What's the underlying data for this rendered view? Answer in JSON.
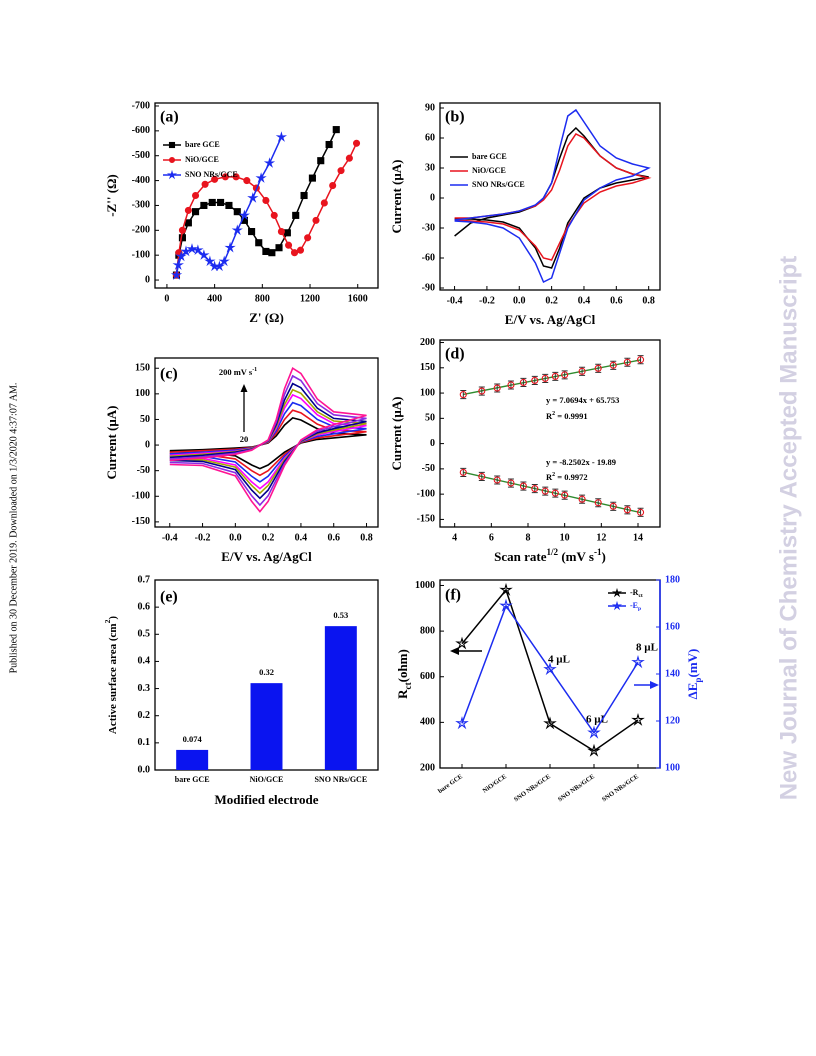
{
  "side_note": "Published on 30 December 2019. Downloaded on 1/3/2020 4:37:07 AM.",
  "watermark": "New Journal of Chemistry Accepted Manuscript",
  "chart_data": [
    {
      "type": "line",
      "panel_label": "(a)",
      "x_label": "Z' (Ω)",
      "y_label": "-Z'' (Ω)",
      "xlim": [
        -100,
        1770
      ],
      "ylim": [
        32,
        -712
      ],
      "xticks": [
        0,
        400,
        800,
        1200,
        1600
      ],
      "yticks": [
        0,
        -100,
        -200,
        -300,
        -400,
        -500,
        -600,
        -700
      ],
      "legend": "upper left",
      "series": [
        {
          "name": "bare GCE",
          "color": "#000000",
          "marker": "square",
          "marker_filled": true,
          "x": [
            80,
            100,
            130,
            180,
            240,
            310,
            380,
            450,
            520,
            590,
            650,
            710,
            770,
            830,
            880,
            940,
            1010,
            1080,
            1150,
            1220,
            1290,
            1360,
            1420
          ],
          "values": [
            -20,
            -100,
            -170,
            -230,
            -275,
            -300,
            -312,
            -312,
            -300,
            -275,
            -240,
            -195,
            -150,
            -115,
            -110,
            -130,
            -190,
            -260,
            -340,
            -410,
            -480,
            -545,
            -605
          ]
        },
        {
          "name": "NiO/GCE",
          "color": "#e8141e",
          "marker": "circle",
          "marker_filled": true,
          "x": [
            80,
            100,
            130,
            180,
            240,
            320,
            400,
            490,
            580,
            670,
            750,
            830,
            900,
            960,
            1020,
            1070,
            1120,
            1180,
            1250,
            1320,
            1390,
            1460,
            1530,
            1590
          ],
          "values": [
            -20,
            -110,
            -200,
            -280,
            -340,
            -385,
            -405,
            -415,
            -415,
            -400,
            -370,
            -320,
            -260,
            -195,
            -140,
            -110,
            -120,
            -170,
            -240,
            -310,
            -380,
            -440,
            -490,
            -550
          ]
        },
        {
          "name": "SNO NRs/GCE",
          "color": "#1c2cf0",
          "marker": "star",
          "marker_filled": true,
          "x": [
            80,
            95,
            120,
            160,
            210,
            260,
            310,
            360,
            400,
            440,
            480,
            530,
            590,
            650,
            720,
            790,
            860,
            960
          ],
          "values": [
            -20,
            -60,
            -95,
            -115,
            -125,
            -120,
            -100,
            -75,
            -55,
            -55,
            -75,
            -130,
            -200,
            -260,
            -330,
            -410,
            -470,
            -575
          ]
        }
      ]
    },
    {
      "type": "line",
      "panel_label": "(b)",
      "x_label": "E/V vs. Ag/AgCl",
      "y_label": "Current (μA)",
      "xlim": [
        -0.49,
        0.87
      ],
      "ylim": [
        -92,
        95
      ],
      "xticks": [
        -0.4,
        -0.2,
        {
          "value": 0,
          "label": "0.0"
        },
        0.2,
        0.4,
        0.6,
        0.8
      ],
      "yticks": [
        -90,
        -60,
        -30,
        0,
        30,
        60,
        90
      ],
      "legend": "upper left",
      "x": [
        -0.4,
        -0.3,
        -0.2,
        -0.1,
        0,
        0.1,
        0.15,
        0.2,
        0.25,
        0.3,
        0.35,
        0.4,
        0.5,
        0.6,
        0.7,
        0.8,
        0.7,
        0.6,
        0.5,
        0.4,
        0.3,
        0.25,
        0.2,
        0.15,
        0.1,
        0,
        -0.1,
        -0.2,
        -0.3,
        -0.4
      ],
      "series": [
        {
          "name": "bare GCE",
          "color": "#000000",
          "values": [
            -38,
            -25,
            -20,
            -17,
            -14,
            -8,
            0,
            15,
            40,
            62,
            70,
            62,
            42,
            30,
            24,
            21,
            18,
            15,
            10,
            0,
            -25,
            -50,
            -70,
            -68,
            -50,
            -30,
            -24,
            -22,
            -21,
            -21
          ]
        },
        {
          "name": "NiO/GCE",
          "color": "#e8141e",
          "values": [
            -20,
            -20,
            -18,
            -16,
            -13,
            -8,
            -2,
            8,
            28,
            52,
            64,
            60,
            42,
            30,
            24,
            20,
            15,
            12,
            6,
            -5,
            -28,
            -45,
            -62,
            -60,
            -48,
            -32,
            -26,
            -24,
            -23,
            -22
          ]
        },
        {
          "name": "SNO NRs/GCE",
          "color": "#1c2cf0",
          "values": [
            -22,
            -20,
            -18,
            -16,
            -13,
            -7,
            0,
            15,
            50,
            82,
            88,
            76,
            52,
            40,
            34,
            30,
            22,
            18,
            10,
            -2,
            -30,
            -55,
            -80,
            -84,
            -65,
            -40,
            -30,
            -26,
            -24,
            -23
          ]
        }
      ]
    },
    {
      "type": "line",
      "panel_label": "(c)",
      "x_label": "E/V vs. Ag/AgCl",
      "y_label": "Current (μA)",
      "xlim": [
        -0.49,
        0.87
      ],
      "ylim": [
        -160,
        170
      ],
      "xticks": [
        -0.4,
        -0.2,
        {
          "value": 0,
          "label": "0.0"
        },
        0.2,
        0.4,
        0.6,
        0.8
      ],
      "yticks": [
        -150,
        -100,
        -50,
        0,
        50,
        100,
        150
      ],
      "annotations": [
        [
          "200 mV s",
          {
            "text": "-1",
            "sup": true
          }
        ],
        "20"
      ],
      "x": [
        -0.4,
        -0.2,
        0,
        0.1,
        0.2,
        0.25,
        0.3,
        0.35,
        0.4,
        0.5,
        0.6,
        0.8,
        0.6,
        0.5,
        0.4,
        0.3,
        0.2,
        0.15,
        0.1,
        0,
        -0.2,
        -0.4
      ],
      "series": [
        {
          "color": "#000000",
          "values": [
            -11,
            -9,
            -6,
            -4,
            4,
            18,
            39,
            53,
            49,
            32,
            23,
            20,
            14,
            11,
            4,
            -14,
            -39,
            -46,
            -39,
            -21,
            -14,
            -13
          ]
        },
        {
          "color": "#e8141e",
          "values": [
            -14,
            -11,
            -8,
            -5,
            5,
            23,
            50,
            68,
            63,
            41,
            29,
            26,
            18,
            14,
            5,
            -18,
            -50,
            -59,
            -50,
            -27,
            -18,
            -17
          ]
        },
        {
          "color": "#1c2cf0",
          "values": [
            -17,
            -14,
            -10,
            -6,
            6,
            28,
            61,
            83,
            77,
            50,
            36,
            32,
            22,
            17,
            6,
            -22,
            -61,
            -72,
            -61,
            -33,
            -22,
            -21
          ]
        },
        {
          "color": "#ff00ff",
          "values": [
            -20,
            -16,
            -12,
            -7,
            7,
            33,
            72,
            98,
            91,
            59,
            42,
            38,
            26,
            20,
            7,
            -26,
            -72,
            -85,
            -72,
            -39,
            -26,
            -25
          ]
        },
        {
          "color": "#a5a500",
          "values": [
            -22,
            -18,
            -13,
            -7,
            7,
            36,
            79,
            108,
            101,
            65,
            47,
            42,
            29,
            22,
            7,
            -29,
            -79,
            -94,
            -79,
            -43,
            -29,
            -27
          ]
        },
        {
          "color": "#00008b",
          "values": [
            -24,
            -20,
            -14,
            -8,
            8,
            40,
            88,
            120,
            112,
            72,
            52,
            46,
            32,
            24,
            8,
            -32,
            -88,
            -104,
            -88,
            -48,
            -32,
            -30
          ]
        },
        {
          "color": "#8a2be2",
          "values": [
            -27,
            -23,
            -16,
            -9,
            9,
            45,
            99,
            135,
            126,
            81,
            59,
            52,
            36,
            27,
            9,
            -36,
            -99,
            -117,
            -99,
            -54,
            -36,
            -34
          ]
        },
        {
          "color": "#ff1493",
          "values": [
            -30,
            -25,
            -18,
            -10,
            10,
            50,
            110,
            150,
            140,
            90,
            65,
            58,
            40,
            30,
            10,
            -40,
            -110,
            -130,
            -110,
            -60,
            -40,
            -38
          ]
        }
      ]
    },
    {
      "type": "scatter",
      "panel_label": "(d)",
      "x_label": [
        "Scan rate",
        {
          "text": "1/2",
          "sup": true
        },
        " (mV s",
        {
          "text": "-1",
          "sup": true
        },
        ")"
      ],
      "y_label": "Current (μA)",
      "xlim": [
        3.2,
        15.2
      ],
      "ylim": [
        -165,
        205
      ],
      "xticks": [
        4,
        6,
        8,
        10,
        12,
        14
      ],
      "yticks": [
        -150,
        -100,
        -50,
        0,
        50,
        100,
        150,
        200
      ],
      "annotations": [
        "y = 7.0694x + 65.753",
        [
          "R",
          {
            "text": "2",
            "sup": true
          },
          " = 0.9991"
        ],
        "y = -8.2502x - 19.89",
        [
          "R",
          {
            "text": "2",
            "sup": true
          },
          " = 0.9972"
        ]
      ],
      "x": [
        4.47,
        5.48,
        6.32,
        7.07,
        7.75,
        8.37,
        8.94,
        9.49,
        10,
        10.95,
        11.83,
        12.65,
        13.42,
        14.14
      ],
      "series": [
        {
          "color": "#e8141e",
          "marker": "circle",
          "marker_filled": false,
          "values": [
            97,
            104,
            110,
            116,
            121,
            125,
            129,
            133,
            136,
            143,
            149,
            155,
            161,
            166
          ],
          "errors": [
            8,
            8,
            8,
            8,
            8,
            8,
            8,
            8,
            8,
            8,
            8,
            8,
            8,
            8
          ]
        },
        {
          "color": "#e8141e",
          "marker": "circle",
          "marker_filled": false,
          "values": [
            -57,
            -65,
            -72,
            -78,
            -84,
            -89,
            -94,
            -98,
            -102,
            -110,
            -117,
            -124,
            -131,
            -136
          ],
          "errors": [
            8,
            8,
            8,
            8,
            8,
            8,
            8,
            8,
            8,
            8,
            8,
            8,
            8,
            8
          ]
        }
      ],
      "fits": [
        {
          "color": "#2e8b2e",
          "x": [
            4.47,
            14.14
          ],
          "values": [
            97.35,
            165.71
          ]
        },
        {
          "color": "#2e8b2e",
          "x": [
            4.47,
            14.14
          ],
          "values": [
            -56.77,
            -136.55
          ]
        }
      ]
    },
    {
      "type": "bar",
      "panel_label": "(e)",
      "x_label": "Modified electrode",
      "y_label": [
        "Active surface area (cm",
        {
          "text": "2",
          "sup": true
        },
        ")"
      ],
      "categories": [
        "bare GCE",
        "NiO/GCE",
        "SNO NRs/GCE"
      ],
      "values": [
        0.074,
        0.32,
        0.53
      ],
      "value_labels": [
        "0.074",
        "0.32",
        "0.53"
      ],
      "color": "#0a14f0",
      "ylim": [
        0,
        0.7
      ],
      "yticks": [
        {
          "value": 0,
          "label": "0.0"
        },
        0.1,
        0.2,
        0.3,
        0.4,
        0.5,
        0.6,
        0.7
      ]
    },
    {
      "type": "line",
      "panel_label": "(f)",
      "y_label": [
        {
          "text": "R"
        },
        {
          "text": "ct",
          "sub": true
        },
        {
          "text": "(ohm)"
        }
      ],
      "y2_label": [
        "ΔE",
        {
          "text": "p",
          "sub": true
        },
        "(mV)"
      ],
      "categories": [
        "bare GCE",
        "NiO/GCE",
        "SNO NRs/GCE",
        "SNO NRs/GCE",
        "SNO NRs/GCE"
      ],
      "ylim": [
        200,
        1024
      ],
      "yticks": [
        200,
        400,
        600,
        800,
        1000
      ],
      "y2lim": [
        100,
        180
      ],
      "y2ticks": [
        100,
        120,
        140,
        160,
        180
      ],
      "legend": "upper right",
      "annotations": [
        "4 µL",
        "6 µL",
        "8 µL"
      ],
      "series": [
        {
          "name": [
            {
              "text": "-R"
            },
            {
              "text": "ct",
              "sub": true
            }
          ],
          "color": "#000000",
          "marker": "star",
          "marker_filled": false,
          "values": [
            745,
            980,
            395,
            275,
            410
          ]
        },
        {
          "name": [
            {
              "text": "-E"
            },
            {
              "text": "p",
              "sub": true
            }
          ],
          "color": "#1c2cf0",
          "marker": "star",
          "marker_filled": false,
          "axis": "y2",
          "values": [
            119,
            169,
            142,
            115,
            145
          ]
        }
      ]
    }
  ]
}
